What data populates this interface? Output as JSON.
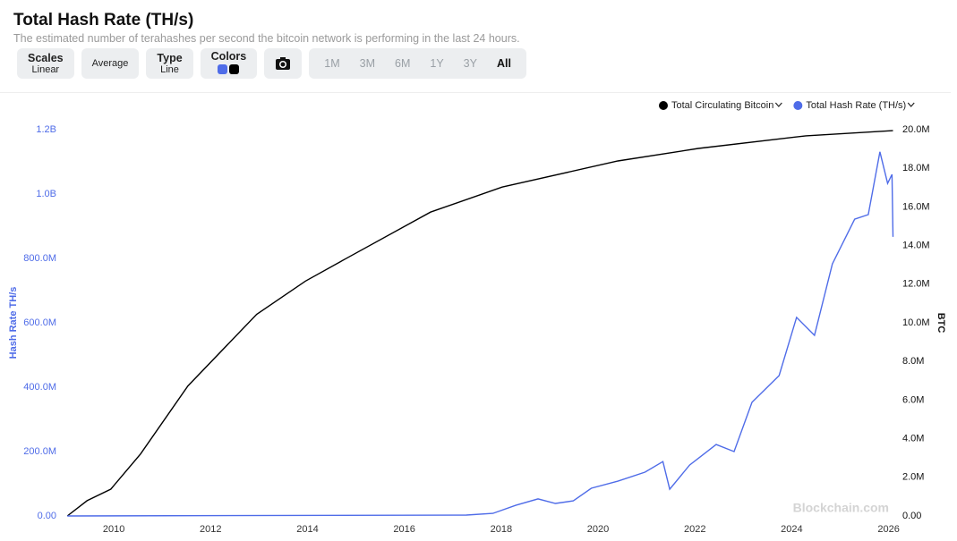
{
  "header": {
    "title": "Total Hash Rate (TH/s)",
    "subtitle": "The estimated number of terahashes per second the bitcoin network is performing in the last 24 hours."
  },
  "toolbar": {
    "scales": {
      "label": "Scales",
      "value": "Linear"
    },
    "average": "Average",
    "type": {
      "label": "Type",
      "value": "Line"
    },
    "colors": "Colors",
    "ranges": [
      "1M",
      "3M",
      "6M",
      "1Y",
      "3Y",
      "All"
    ]
  },
  "watermark": "Blockchain.com",
  "chart_data": {
    "type": "line",
    "ylabel": "Hash Rate TH/s",
    "y2label": "BTC",
    "xlim": [
      2009.0,
      2026.1
    ],
    "xticks": [
      2010,
      2012,
      2014,
      2016,
      2018,
      2020,
      2022,
      2024,
      2026
    ],
    "ylim": [
      0,
      1200000000
    ],
    "yticks": [
      {
        "value": 0,
        "label": "0.00"
      },
      {
        "value": 200000000,
        "label": "200.0M"
      },
      {
        "value": 400000000,
        "label": "400.0M"
      },
      {
        "value": 600000000,
        "label": "600.0M"
      },
      {
        "value": 800000000,
        "label": "800.0M"
      },
      {
        "value": 1000000000,
        "label": "1.0B"
      },
      {
        "value": 1200000000,
        "label": "1.2B"
      }
    ],
    "y2lim": [
      0,
      20000000
    ],
    "y2ticks": [
      {
        "value": 0,
        "label": "0.00"
      },
      {
        "value": 2000000,
        "label": "2.0M"
      },
      {
        "value": 4000000,
        "label": "4.0M"
      },
      {
        "value": 6000000,
        "label": "6.0M"
      },
      {
        "value": 8000000,
        "label": "8.0M"
      },
      {
        "value": 10000000,
        "label": "10.0M"
      },
      {
        "value": 12000000,
        "label": "12.0M"
      },
      {
        "value": 14000000,
        "label": "14.0M"
      },
      {
        "value": 16000000,
        "label": "16.0M"
      },
      {
        "value": 18000000,
        "label": "18.0M"
      },
      {
        "value": 20000000,
        "label": "20.0M"
      }
    ],
    "series": [
      {
        "name": "Total Circulating Bitcoin",
        "color": "#000000",
        "axis": "y2",
        "x": [
          2009.04,
          2009.45,
          2009.94,
          2010.55,
          2011.53,
          2012.95,
          2013.96,
          2014.79,
          2016.54,
          2018.02,
          2020.41,
          2022.07,
          2024.29,
          2026.09
        ],
        "values": [
          0,
          790000,
          1390000,
          3200000,
          6730000,
          10440000,
          12160000,
          13320000,
          15730000,
          17030000,
          18380000,
          19030000,
          19680000,
          19950000
        ]
      },
      {
        "name": "Total Hash Rate (TH/s)",
        "color": "#4f6ce8",
        "x": [
          2009.04,
          2017.28,
          2017.83,
          2018.3,
          2018.76,
          2019.12,
          2019.49,
          2019.86,
          2020.41,
          2020.97,
          2021.34,
          2021.48,
          2021.89,
          2022.44,
          2022.81,
          2023.18,
          2023.74,
          2024.1,
          2024.47,
          2024.84,
          2025.3,
          2025.58,
          2025.82,
          2025.98,
          2026.07,
          2026.09
        ],
        "values": [
          0,
          2800000,
          8000000,
          33000000,
          53000000,
          39000000,
          47000000,
          86000000,
          108000000,
          136000000,
          169000000,
          83000000,
          158000000,
          222000000,
          200000000,
          353000000,
          436000000,
          617000000,
          561000000,
          783000000,
          922000000,
          936000000,
          1131000000,
          1033000000,
          1061000000,
          867000000
        ]
      }
    ]
  }
}
